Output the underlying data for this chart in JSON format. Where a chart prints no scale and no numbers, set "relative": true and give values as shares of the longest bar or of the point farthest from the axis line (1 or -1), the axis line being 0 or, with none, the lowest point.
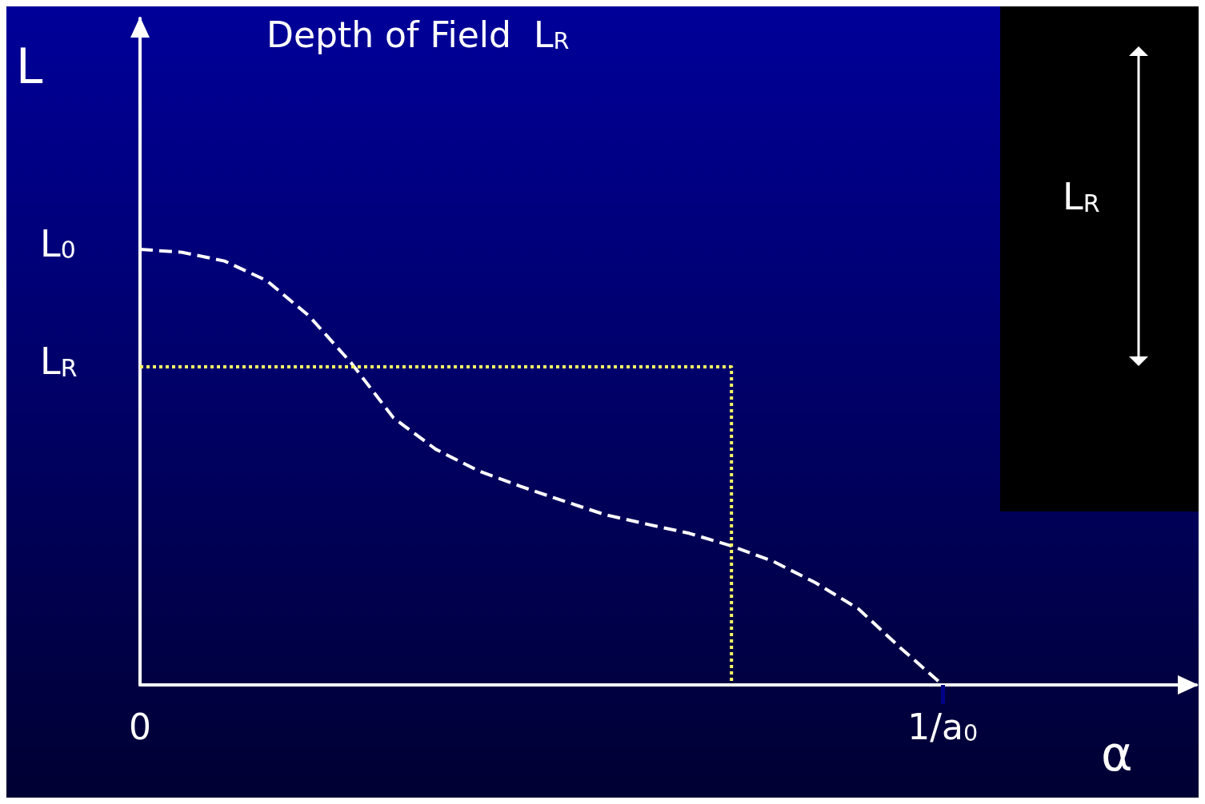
{
  "chart_data": {
    "type": "line",
    "title": "Depth of Field  L$_{R}$",
    "xlabel": "α",
    "ylabel": "L",
    "relative": true,
    "categories": [
      "0",
      null,
      null,
      null,
      null,
      null,
      null,
      null,
      null,
      null,
      null,
      null,
      null,
      null,
      null,
      null,
      null,
      null,
      null,
      "1/a$_{0}$",
      null,
      null,
      null,
      null,
      null,
      null
    ],
    "series": [
      {
        "color": "#ffffff",
        "line_style": "dashed",
        "values": [
          1,
          0.993,
          0.973,
          0.928,
          0.847,
          0.739,
          0.613,
          0.541,
          0.492,
          0.456,
          0.423,
          0.391,
          0.369,
          0.348,
          0.319,
          0.283,
          0.234,
          0.175,
          0.085,
          0,
          null,
          null,
          null,
          null,
          null,
          null
        ]
      },
      {
        "type": "step",
        "color": "#ffff66",
        "line_style": "dotted",
        "values": [
          0.73,
          0.73,
          0.73,
          0.73,
          0.73,
          0.73,
          0.73,
          0.73,
          0.73,
          0.73,
          0.73,
          0.73,
          0.73,
          0.73,
          0.73,
          0,
          null,
          null,
          null,
          null,
          null,
          null,
          null,
          null,
          null,
          null
        ]
      }
    ],
    "annotations": [
      {
        "text": "L$_{0}$",
        "x": "0",
        "y": 1
      },
      {
        "text": "L$_{R}$",
        "x": "0",
        "y": 0.73
      },
      "L$_{R}$"
    ],
    "grid": false,
    "marker": "none"
  }
}
